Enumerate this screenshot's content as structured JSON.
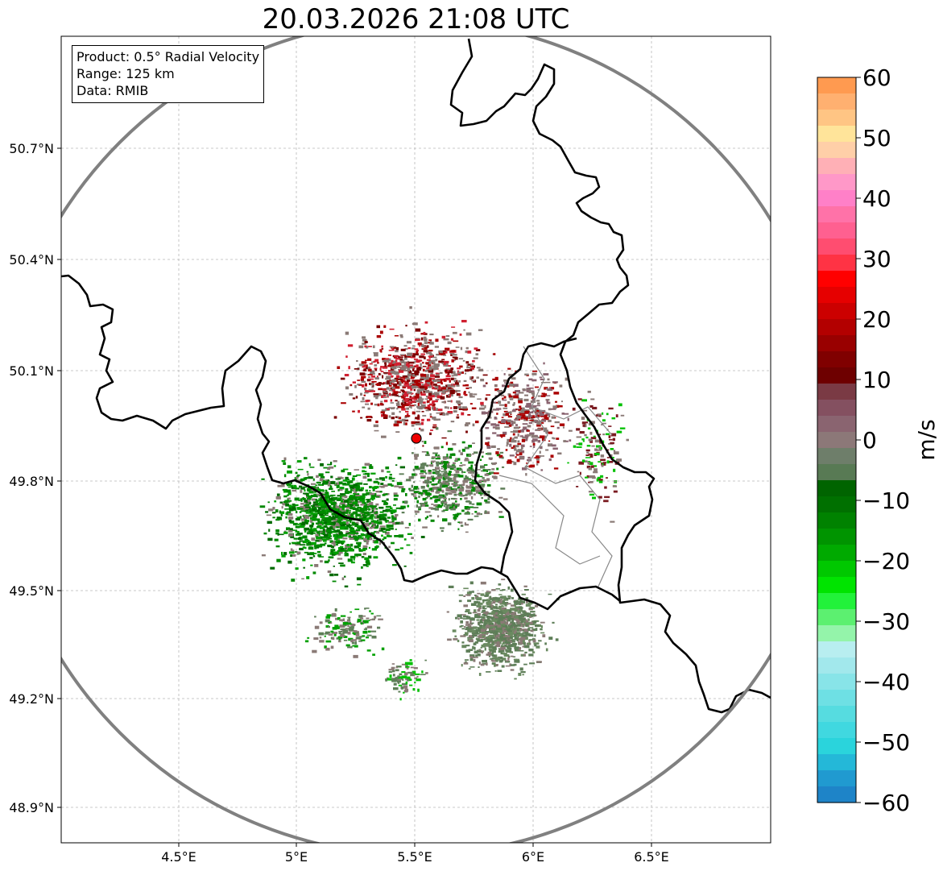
{
  "title": "20.03.2026 21:08 UTC",
  "info": {
    "product": "Product: 0.5° Radial Velocity",
    "range": "Range: 125 km",
    "data": "Data: RMIB"
  },
  "axes": {
    "lon_ticks": [
      "4.5°E",
      "5°E",
      "5.5°E",
      "6°E",
      "6.5°E"
    ],
    "lat_ticks": [
      "50.7°N",
      "50.4°N",
      "50.1°N",
      "49.8°N",
      "49.5°N",
      "49.2°N",
      "48.9°N"
    ]
  },
  "colorbar": {
    "unit": "m/s",
    "ticks": [
      "60",
      "50",
      "40",
      "30",
      "20",
      "10",
      "0",
      "−10",
      "−20",
      "−30",
      "−40",
      "−50",
      "−60"
    ],
    "colors": [
      "#ff9a50",
      "#ffb070",
      "#ffc584",
      "#ffe49a",
      "#ffcfa8",
      "#ffb0b6",
      "#ff98c8",
      "#ff80c8",
      "#ff72a8",
      "#ff6090",
      "#ff4d70",
      "#ff3344",
      "#ff0000",
      "#e60000",
      "#cc0000",
      "#b30000",
      "#990000",
      "#800000",
      "#6e0000",
      "#7a3a44",
      "#845060",
      "#8a6470",
      "#8c7878",
      "#6e7e6a",
      "#587a54",
      "#006400",
      "#007000",
      "#008200",
      "#009400",
      "#00aa00",
      "#00c800",
      "#00e400",
      "#22f23a",
      "#5cf070",
      "#94f4aa",
      "#b8eef0",
      "#a2e8ec",
      "#88e4e8",
      "#6ee0e4",
      "#56dce0",
      "#40d8e0",
      "#2ad4dc",
      "#24b8d8",
      "#209ad0",
      "#1e84c8"
    ]
  },
  "radar": {
    "site": "radar-site",
    "echo_colors": {
      "zero": "#8a7a76",
      "approach": "#008800",
      "recede": "#aa0000",
      "far": "#5e7e58"
    }
  }
}
